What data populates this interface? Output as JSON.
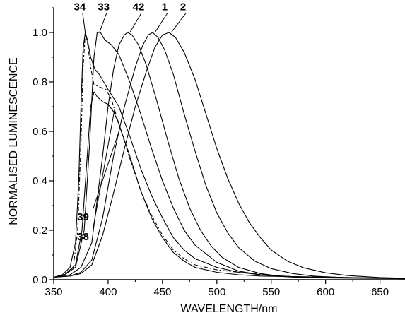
{
  "chart_data": {
    "type": "line",
    "xlabel": "WAVELENGTH/nm",
    "ylabel": "NORMALISED LUMINESCENCE",
    "xlim": [
      350,
      673
    ],
    "ylim": [
      0.0,
      1.1
    ],
    "x_ticks": [
      "350",
      "400",
      "450",
      "500",
      "550",
      "600",
      "650"
    ],
    "y_ticks": [
      "0.0",
      "0.2",
      "0.4",
      "0.6",
      "0.8",
      "1.0"
    ],
    "grid": false,
    "series": [
      {
        "name": "34",
        "dash": "",
        "points": [
          [
            350,
            0.01
          ],
          [
            358,
            0.02
          ],
          [
            365,
            0.05
          ],
          [
            370,
            0.15
          ],
          [
            373,
            0.4
          ],
          [
            375,
            0.7
          ],
          [
            377,
            0.93
          ],
          [
            379,
            1.0
          ],
          [
            381,
            0.97
          ],
          [
            384,
            0.9
          ],
          [
            388,
            0.85
          ],
          [
            392,
            0.83
          ],
          [
            396,
            0.8
          ],
          [
            400,
            0.77
          ],
          [
            410,
            0.7
          ],
          [
            420,
            0.58
          ],
          [
            430,
            0.45
          ],
          [
            440,
            0.34
          ],
          [
            450,
            0.25
          ],
          [
            460,
            0.17
          ],
          [
            470,
            0.12
          ],
          [
            480,
            0.085
          ],
          [
            500,
            0.05
          ],
          [
            520,
            0.03
          ],
          [
            540,
            0.02
          ],
          [
            560,
            0.015
          ],
          [
            580,
            0.01
          ],
          [
            673,
            0.005
          ]
        ]
      },
      {
        "name": "33",
        "dash": "",
        "points": [
          [
            350,
            0.01
          ],
          [
            360,
            0.02
          ],
          [
            370,
            0.05
          ],
          [
            378,
            0.2
          ],
          [
            383,
            0.55
          ],
          [
            387,
            0.9
          ],
          [
            390,
            1.0
          ],
          [
            393,
            1.0
          ],
          [
            397,
            0.97
          ],
          [
            403,
            0.95
          ],
          [
            410,
            0.91
          ],
          [
            420,
            0.8
          ],
          [
            430,
            0.67
          ],
          [
            440,
            0.53
          ],
          [
            450,
            0.4
          ],
          [
            460,
            0.29
          ],
          [
            470,
            0.2
          ],
          [
            480,
            0.14
          ],
          [
            500,
            0.07
          ],
          [
            520,
            0.035
          ],
          [
            540,
            0.02
          ],
          [
            560,
            0.013
          ],
          [
            673,
            0.005
          ]
        ]
      },
      {
        "name": "39",
        "dash": "6 3 2 3",
        "points": [
          [
            350,
            0.01
          ],
          [
            360,
            0.02
          ],
          [
            368,
            0.05
          ],
          [
            372,
            0.2
          ],
          [
            375,
            0.55
          ],
          [
            377,
            0.85
          ],
          [
            379,
            1.0
          ],
          [
            381,
            0.96
          ],
          [
            384,
            0.86
          ],
          [
            387,
            0.79
          ],
          [
            392,
            0.78
          ],
          [
            398,
            0.77
          ],
          [
            403,
            0.73
          ],
          [
            410,
            0.63
          ],
          [
            420,
            0.49
          ],
          [
            430,
            0.36
          ],
          [
            440,
            0.26
          ],
          [
            450,
            0.18
          ],
          [
            460,
            0.12
          ],
          [
            470,
            0.085
          ],
          [
            480,
            0.06
          ],
          [
            500,
            0.04
          ],
          [
            520,
            0.03
          ],
          [
            540,
            0.022
          ],
          [
            560,
            0.015
          ],
          [
            580,
            0.01
          ],
          [
            673,
            0.005
          ]
        ]
      },
      {
        "name": "38",
        "dash": "",
        "points": [
          [
            350,
            0.01
          ],
          [
            360,
            0.02
          ],
          [
            370,
            0.06
          ],
          [
            376,
            0.2
          ],
          [
            380,
            0.45
          ],
          [
            384,
            0.7
          ],
          [
            387,
            0.76
          ],
          [
            390,
            0.74
          ],
          [
            395,
            0.72
          ],
          [
            400,
            0.71
          ],
          [
            405,
            0.68
          ],
          [
            410,
            0.63
          ],
          [
            420,
            0.5
          ],
          [
            430,
            0.36
          ],
          [
            440,
            0.25
          ],
          [
            450,
            0.17
          ],
          [
            460,
            0.11
          ],
          [
            470,
            0.075
          ],
          [
            480,
            0.05
          ],
          [
            500,
            0.03
          ],
          [
            520,
            0.02
          ],
          [
            540,
            0.015
          ],
          [
            673,
            0.005
          ]
        ]
      },
      {
        "name": "42",
        "dash": "",
        "points": [
          [
            350,
            0.01
          ],
          [
            365,
            0.02
          ],
          [
            375,
            0.05
          ],
          [
            385,
            0.15
          ],
          [
            395,
            0.5
          ],
          [
            400,
            0.7
          ],
          [
            405,
            0.85
          ],
          [
            410,
            0.95
          ],
          [
            415,
            0.99
          ],
          [
            418,
            1.0
          ],
          [
            422,
            0.99
          ],
          [
            428,
            0.95
          ],
          [
            435,
            0.87
          ],
          [
            445,
            0.72
          ],
          [
            455,
            0.56
          ],
          [
            465,
            0.41
          ],
          [
            475,
            0.29
          ],
          [
            485,
            0.2
          ],
          [
            495,
            0.135
          ],
          [
            505,
            0.09
          ],
          [
            520,
            0.05
          ],
          [
            540,
            0.025
          ],
          [
            560,
            0.013
          ],
          [
            580,
            0.008
          ],
          [
            673,
            0.004
          ]
        ]
      },
      {
        "name": "1",
        "dash": "",
        "points": [
          [
            350,
            0.01
          ],
          [
            365,
            0.015
          ],
          [
            375,
            0.03
          ],
          [
            385,
            0.08
          ],
          [
            395,
            0.25
          ],
          [
            405,
            0.5
          ],
          [
            415,
            0.7
          ],
          [
            425,
            0.86
          ],
          [
            432,
            0.95
          ],
          [
            437,
            0.99
          ],
          [
            441,
            1.0
          ],
          [
            446,
            0.98
          ],
          [
            452,
            0.93
          ],
          [
            460,
            0.83
          ],
          [
            470,
            0.67
          ],
          [
            480,
            0.52
          ],
          [
            490,
            0.38
          ],
          [
            500,
            0.27
          ],
          [
            510,
            0.19
          ],
          [
            520,
            0.13
          ],
          [
            535,
            0.075
          ],
          [
            550,
            0.045
          ],
          [
            570,
            0.025
          ],
          [
            590,
            0.014
          ],
          [
            620,
            0.008
          ],
          [
            673,
            0.004
          ]
        ]
      },
      {
        "name": "2",
        "dash": "",
        "points": [
          [
            350,
            0.01
          ],
          [
            365,
            0.015
          ],
          [
            375,
            0.025
          ],
          [
            385,
            0.06
          ],
          [
            395,
            0.18
          ],
          [
            405,
            0.35
          ],
          [
            415,
            0.53
          ],
          [
            425,
            0.7
          ],
          [
            435,
            0.84
          ],
          [
            443,
            0.94
          ],
          [
            450,
            0.99
          ],
          [
            456,
            1.0
          ],
          [
            462,
            0.98
          ],
          [
            470,
            0.92
          ],
          [
            480,
            0.81
          ],
          [
            490,
            0.67
          ],
          [
            500,
            0.53
          ],
          [
            510,
            0.41
          ],
          [
            520,
            0.31
          ],
          [
            530,
            0.23
          ],
          [
            540,
            0.17
          ],
          [
            550,
            0.12
          ],
          [
            565,
            0.075
          ],
          [
            580,
            0.048
          ],
          [
            600,
            0.028
          ],
          [
            620,
            0.017
          ],
          [
            650,
            0.009
          ],
          [
            673,
            0.006
          ]
        ]
      }
    ],
    "annotations": [
      {
        "text": "34",
        "at": [
          379,
          1.0
        ],
        "label_at": [
          374,
          1.09
        ]
      },
      {
        "text": "33",
        "at": [
          392,
          1.0
        ],
        "label_at": [
          396,
          1.09
        ]
      },
      {
        "text": "42",
        "at": [
          420,
          1.0
        ],
        "label_at": [
          428,
          1.09
        ]
      },
      {
        "text": "1",
        "at": [
          443,
          1.0
        ],
        "label_at": [
          452,
          1.09
        ]
      },
      {
        "text": "2",
        "at": [
          458,
          1.0
        ],
        "label_at": [
          469,
          1.09
        ]
      },
      {
        "text": "39",
        "at": [
          410,
          0.6
        ],
        "label_at": [
          377,
          0.24
        ]
      },
      {
        "text": "38",
        "at": [
          406,
          0.69
        ],
        "label_at": [
          377,
          0.16
        ]
      }
    ]
  }
}
